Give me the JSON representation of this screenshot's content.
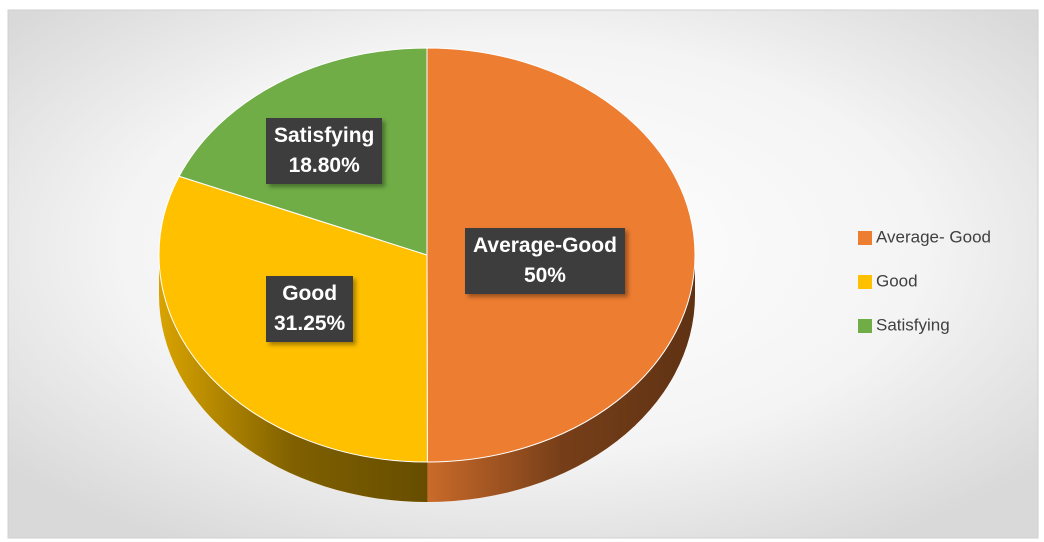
{
  "chart_data": {
    "type": "pie",
    "categories": [
      "Average- Good",
      "Good",
      "Satisfying"
    ],
    "label_names": [
      "Average-Good",
      "Good",
      "Satisfying"
    ],
    "values": [
      50,
      31.25,
      18.8
    ],
    "value_labels": [
      "50%",
      "31.25%",
      "18.80%"
    ],
    "colors": [
      "#ed7d31",
      "#ffc000",
      "#70ad47"
    ],
    "legend": "right"
  }
}
